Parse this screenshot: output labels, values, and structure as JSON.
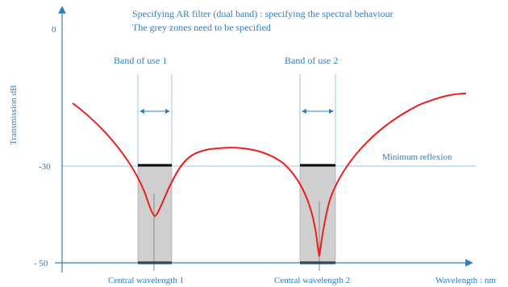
{
  "title_lines": [
    "Specifying AR filter (dual band) : specifying the spectral behaviour",
    "The grey zones need to be specified"
  ],
  "axes": {
    "y_label": "Transmission dB",
    "x_label": "Wavelength : nm",
    "y_ticks": [
      "0",
      "-30",
      "- 50"
    ]
  },
  "bands": [
    {
      "label": "Band of use 1",
      "central_label": "Central wavelength 1"
    },
    {
      "label": "Band of use 2",
      "central_label": "Central wavelength 2"
    }
  ],
  "threshold_label": "Minimum reflexion",
  "colors": {
    "axis": "#2f7fc2",
    "curve": "#e8201c",
    "grey_zone": "#cfcfcf",
    "threshold_line": "#9cc6e8"
  }
}
